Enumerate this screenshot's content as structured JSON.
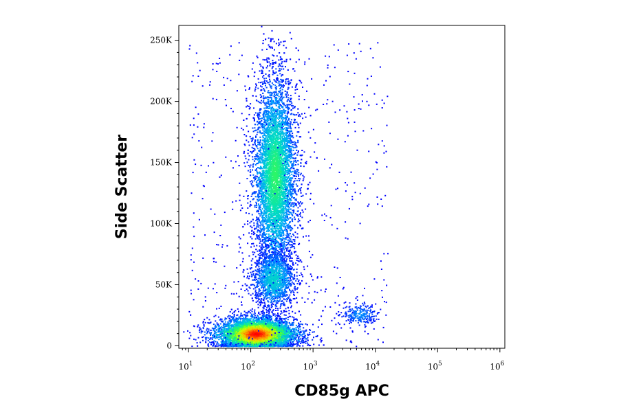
{
  "chart_data": {
    "type": "scatter",
    "subtype": "flow cytometry density plot (pseudocolor)",
    "xlabel": "CD85g APC",
    "ylabel": "Side Scatter",
    "x_scale": "log",
    "xlim": [
      7,
      1200000
    ],
    "x_ticks": [
      {
        "base": "10",
        "exp": "1",
        "value": 10
      },
      {
        "base": "10",
        "exp": "2",
        "value": 100
      },
      {
        "base": "10",
        "exp": "3",
        "value": 1000
      },
      {
        "base": "10",
        "exp": "4",
        "value": 10000
      },
      {
        "base": "10",
        "exp": "5",
        "value": 100000
      },
      {
        "base": "10",
        "exp": "6",
        "value": 1000000
      }
    ],
    "y_scale": "linear",
    "ylim": [
      -2000,
      262143
    ],
    "y_ticks": [
      {
        "label": "0",
        "value": 0
      },
      {
        "label": "50K",
        "value": 50000
      },
      {
        "label": "100K",
        "value": 100000
      },
      {
        "label": "150K",
        "value": 150000
      },
      {
        "label": "200K",
        "value": 200000
      },
      {
        "label": "250K",
        "value": 250000
      }
    ],
    "grid": false,
    "legend": "none",
    "colormap": [
      "#0000ff",
      "#00a0ff",
      "#00e0c0",
      "#40ff40",
      "#d0ff00",
      "#ffa000",
      "#ff0000"
    ],
    "populations": [
      {
        "center_x": 120,
        "center_y": 10000,
        "spread_log_x": 0.24,
        "spread_y": 5500,
        "events": 6000,
        "peak_density": 1.0
      },
      {
        "center_x": 240,
        "center_y": 140000,
        "spread_log_x": 0.13,
        "spread_y": 33000,
        "events": 7000,
        "peak_density": 0.45
      },
      {
        "center_x": 230,
        "center_y": 55000,
        "spread_log_x": 0.13,
        "spread_y": 10000,
        "events": 1500,
        "peak_density": 0.3
      },
      {
        "center_x": 5500,
        "center_y": 26000,
        "spread_log_x": 0.12,
        "spread_y": 4000,
        "events": 250,
        "peak_density": 0.15
      }
    ]
  }
}
